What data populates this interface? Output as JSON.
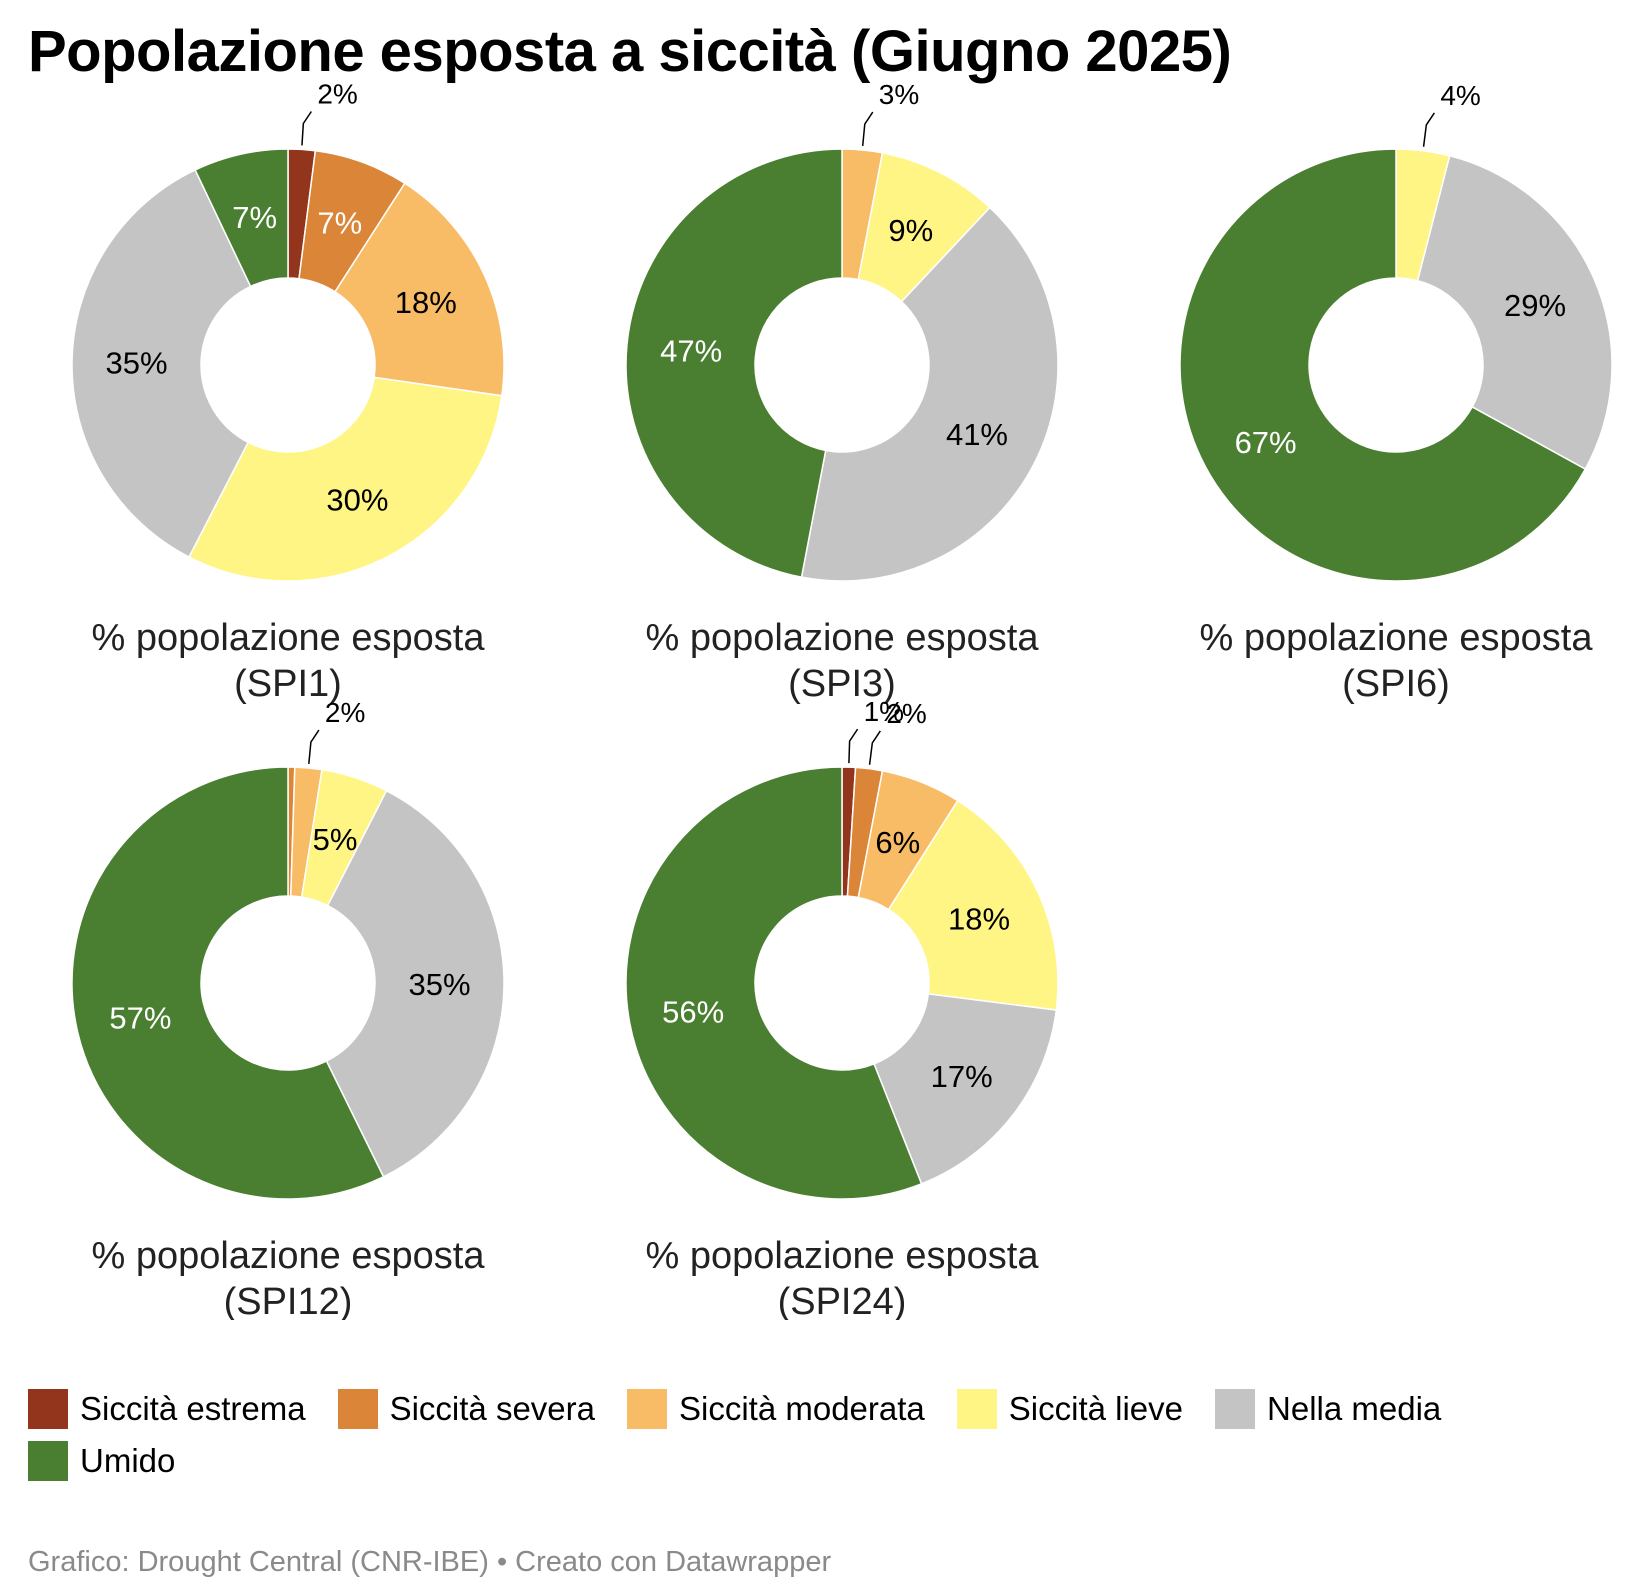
{
  "title": "Popolazione esposta a siccità (Giugno 2025)",
  "footer": "Grafico: Drought Central (CNR-IBE) • Creato con Datawrapper",
  "legend": [
    {
      "label": "Siccità estrema",
      "color": "#93341c"
    },
    {
      "label": "Siccità severa",
      "color": "#da8537"
    },
    {
      "label": "Siccità moderata",
      "color": "#f8bc66"
    },
    {
      "label": "Siccità lieve",
      "color": "#fff585"
    },
    {
      "label": "Nella media",
      "color": "#c4c4c4"
    },
    {
      "label": "Umido",
      "color": "#4a7f31"
    }
  ],
  "chart_data": [
    {
      "type": "pie",
      "title": "% popolazione esposta (SPI1)",
      "categories": [
        "Siccità estrema",
        "Siccità severa",
        "Siccità moderata",
        "Siccità lieve",
        "Nella media",
        "Umido"
      ],
      "values": [
        2,
        7,
        18,
        30,
        35,
        7
      ],
      "labels": [
        "2%",
        "7%",
        "18%",
        "30%",
        "35%",
        "7%"
      ]
    },
    {
      "type": "pie",
      "title": "% popolazione esposta (SPI3)",
      "categories": [
        "Siccità estrema",
        "Siccità severa",
        "Siccità moderata",
        "Siccità lieve",
        "Nella media",
        "Umido"
      ],
      "values": [
        0,
        0,
        3,
        9,
        41,
        47
      ],
      "labels": [
        "",
        "",
        "3%",
        "9%",
        "41%",
        "47%"
      ]
    },
    {
      "type": "pie",
      "title": "% popolazione esposta (SPI6)",
      "categories": [
        "Siccità estrema",
        "Siccità severa",
        "Siccità moderata",
        "Siccità lieve",
        "Nella media",
        "Umido"
      ],
      "values": [
        0,
        0,
        0,
        4,
        29,
        67
      ],
      "labels": [
        "",
        "",
        "",
        "4%",
        "29%",
        "67%"
      ]
    },
    {
      "type": "pie",
      "title": "% popolazione esposta (SPI12)",
      "categories": [
        "Siccità estrema",
        "Siccità severa",
        "Siccità moderata",
        "Siccità lieve",
        "Nella media",
        "Umido"
      ],
      "values": [
        0,
        0.5,
        2,
        5,
        35,
        57
      ],
      "labels": [
        "",
        "",
        "2%",
        "5%",
        "35%",
        "57%"
      ]
    },
    {
      "type": "pie",
      "title": "% popolazione esposta (SPI24)",
      "categories": [
        "Siccità estrema",
        "Siccità severa",
        "Siccità moderata",
        "Siccità lieve",
        "Nella media",
        "Umido"
      ],
      "values": [
        1,
        2,
        6,
        18,
        17,
        56
      ],
      "labels": [
        "1%",
        "2%",
        "6%",
        "18%",
        "17%",
        "56%"
      ]
    }
  ]
}
